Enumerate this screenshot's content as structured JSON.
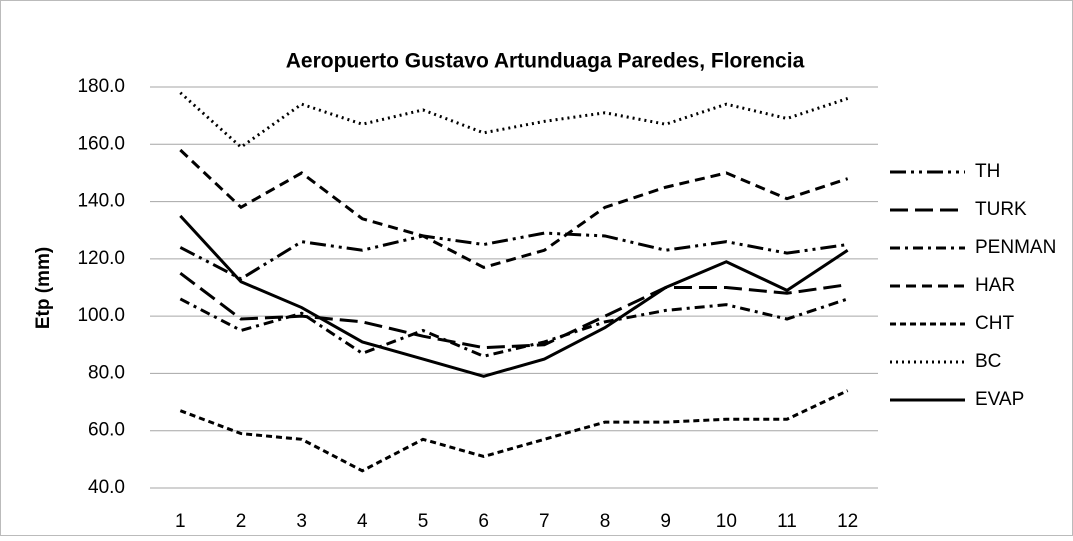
{
  "chart_data": {
    "type": "line",
    "title": "Aeropuerto  Gustavo Artunduaga Paredes, Florencia",
    "y_label": "Etp (mm)",
    "categories": [
      "1",
      "2",
      "3",
      "4",
      "5",
      "6",
      "7",
      "8",
      "9",
      "10",
      "11",
      "12"
    ],
    "series": [
      {
        "name": "TH",
        "color": "#000000",
        "dash": "16,5,3,5,3,5",
        "values": [
          124,
          113,
          126,
          123,
          128,
          125,
          129,
          128,
          123,
          126,
          122,
          125
        ]
      },
      {
        "name": "TURK",
        "color": "#000000",
        "dash": "18,7",
        "values": [
          115,
          99,
          100,
          98,
          93,
          89,
          90,
          100,
          110,
          110,
          108,
          111
        ]
      },
      {
        "name": "PENMAN",
        "color": "#000000",
        "dash": "10,5,3,5",
        "values": [
          106,
          95,
          101,
          87,
          95,
          86,
          91,
          98,
          102,
          104,
          99,
          106
        ]
      },
      {
        "name": "HAR",
        "color": "#000000",
        "dash": "10,6",
        "values": [
          158,
          138,
          150,
          134,
          128,
          117,
          123,
          138,
          145,
          150,
          141,
          148
        ]
      },
      {
        "name": "CHT",
        "color": "#000000",
        "dash": "6,4",
        "values": [
          67,
          59,
          57,
          46,
          57,
          51,
          57,
          63,
          63,
          64,
          64,
          74
        ]
      },
      {
        "name": "BC",
        "color": "#000000",
        "dash": "2,4",
        "values": [
          178,
          159,
          174,
          167,
          172,
          164,
          168,
          171,
          167,
          174,
          169,
          176
        ]
      },
      {
        "name": "EVAP",
        "color": "#000000",
        "dash": "none",
        "values": [
          135,
          112,
          103,
          91,
          85,
          79,
          85,
          96,
          110,
          119,
          109,
          123
        ]
      }
    ],
    "ylim": [
      40,
      180
    ],
    "yticks": [
      {
        "value": 40,
        "label": "40.0"
      },
      {
        "value": 60,
        "label": "60.0"
      },
      {
        "value": 80,
        "label": "80.0"
      },
      {
        "value": 100,
        "label": "100.0"
      },
      {
        "value": 120,
        "label": "120.0"
      },
      {
        "value": 140,
        "label": "140.0"
      },
      {
        "value": 160,
        "label": "160.0"
      },
      {
        "value": 180,
        "label": "180.0"
      }
    ],
    "grid": true,
    "legend": "right"
  }
}
